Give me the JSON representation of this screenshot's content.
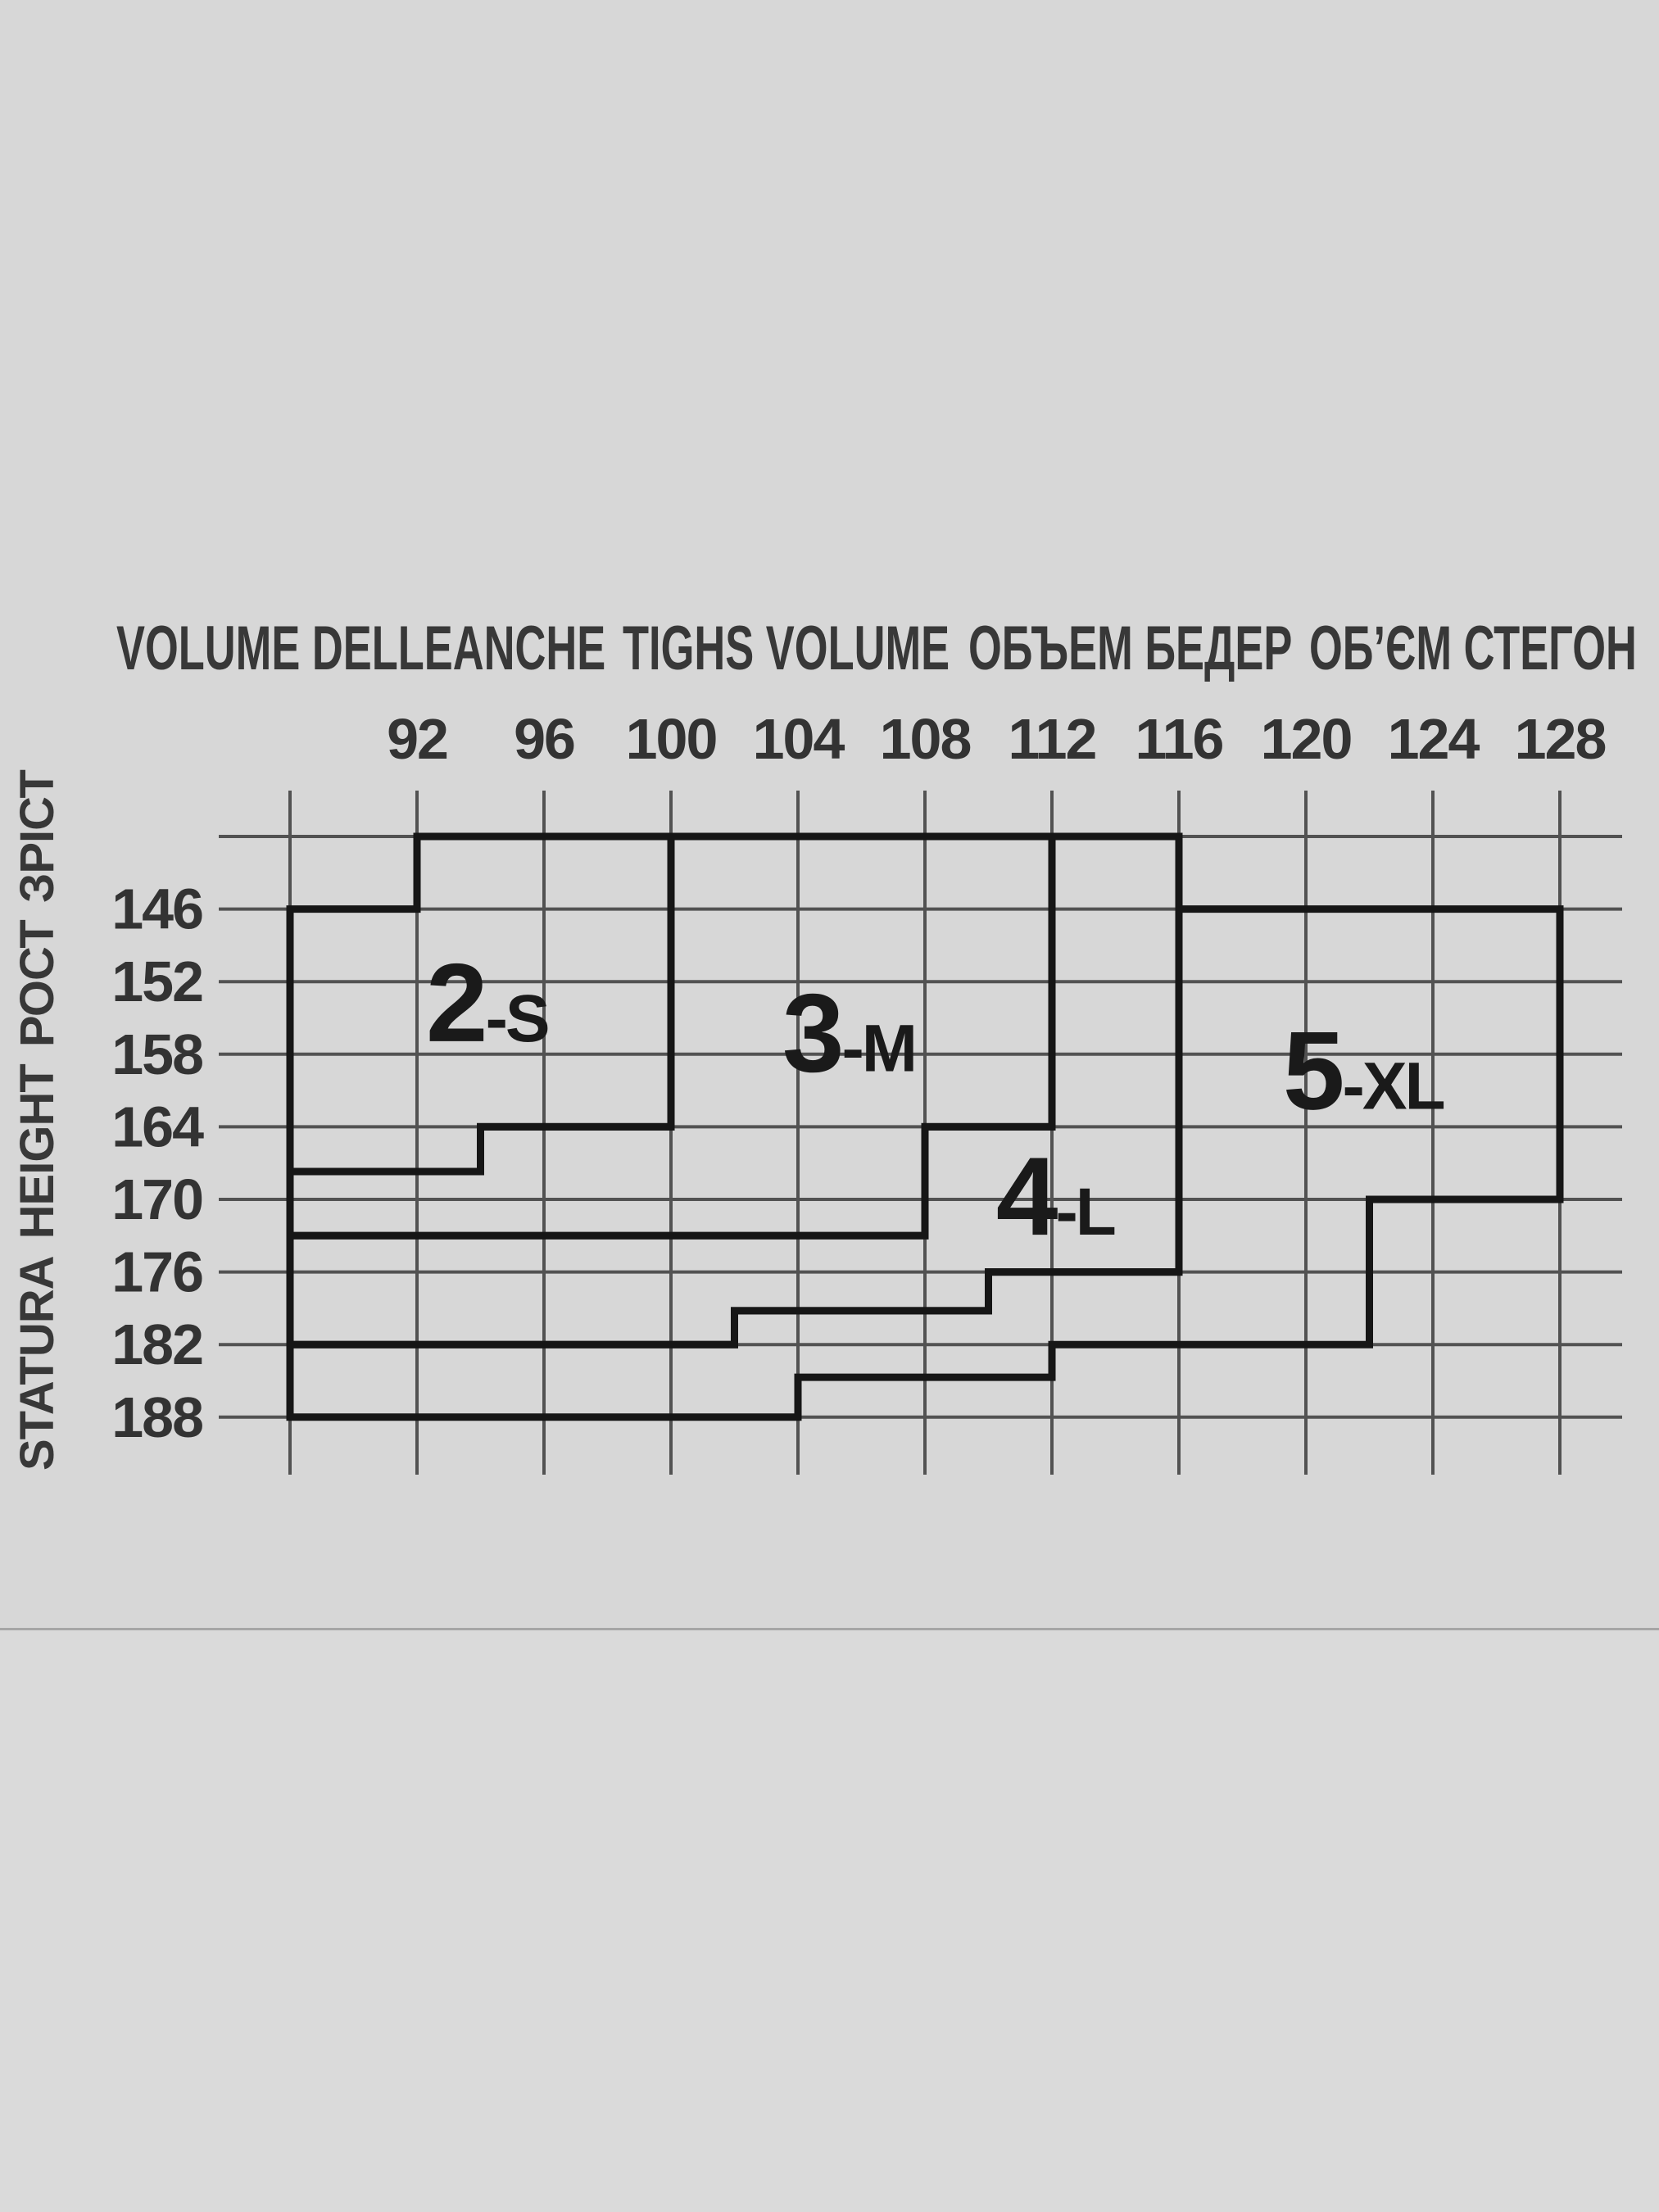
{
  "page": {
    "background": "#d7d7d7",
    "background_below_photo": "#dadada",
    "photo_bottom_edge_color": "#a6a6a6"
  },
  "chart_data": {
    "type": "area",
    "title": "Tights size selection chart: size region by hip volume and height",
    "x_axis": {
      "title_segments": [
        "VOLUME DELLEANCHE",
        "TIGHS VOLUME",
        "ОБЪЕМ БЕДЕР",
        "ОБ’ЄМ СТЕГОН"
      ],
      "tick_labels": [
        92,
        96,
        100,
        104,
        108,
        112,
        116,
        120,
        124,
        128
      ],
      "grid_values": [
        88,
        92,
        96,
        100,
        104,
        108,
        112,
        116,
        120,
        124,
        128
      ],
      "range": [
        88,
        128
      ]
    },
    "y_axis": {
      "title_segments_bottom_to_top": [
        "STATURA",
        "HEIGHT",
        "РОСТ",
        "ЗРІСТ"
      ],
      "tick_labels": [
        146,
        152,
        158,
        164,
        170,
        176,
        182,
        188
      ],
      "grid_values": [
        140,
        146,
        152,
        158,
        164,
        170,
        176,
        182,
        188
      ],
      "range": [
        140,
        188
      ]
    },
    "grid": {
      "show": true
    },
    "legend": {
      "show": false
    },
    "regions": [
      {
        "size_number": "2",
        "size_letter": "S",
        "display": "2-S",
        "x_range": [
          88,
          100
        ],
        "y_range": [
          140,
          167.7
        ],
        "polygon": [
          [
            92,
            140
          ],
          [
            100,
            140
          ],
          [
            100,
            164
          ],
          [
            94,
            164
          ],
          [
            94,
            167.7
          ],
          [
            88,
            167.7
          ],
          [
            88,
            146
          ],
          [
            92,
            146
          ]
        ],
        "label_pos": [
          94.2,
          153.6
        ]
      },
      {
        "size_number": "3",
        "size_letter": "M",
        "display": "3-M",
        "x_range": [
          88,
          112
        ],
        "y_range": [
          140,
          173
        ],
        "polygon": [
          [
            100,
            140
          ],
          [
            112,
            140
          ],
          [
            112,
            164
          ],
          [
            108,
            164
          ],
          [
            108,
            173
          ],
          [
            88,
            173
          ],
          [
            88,
            167.7
          ],
          [
            94,
            167.7
          ],
          [
            94,
            164
          ],
          [
            100,
            164
          ]
        ],
        "label_pos": [
          105.6,
          156.1
        ]
      },
      {
        "size_number": "4",
        "size_letter": "L",
        "display": "4-L",
        "x_range": [
          88,
          116
        ],
        "y_range": [
          140,
          182
        ],
        "polygon": [
          [
            112,
            140
          ],
          [
            116,
            140
          ],
          [
            116,
            176
          ],
          [
            110,
            176
          ],
          [
            110,
            179.2
          ],
          [
            102,
            179.2
          ],
          [
            102,
            182
          ],
          [
            88,
            182
          ],
          [
            88,
            173
          ],
          [
            108,
            173
          ],
          [
            108,
            164
          ],
          [
            112,
            164
          ]
        ],
        "label_pos": [
          112.1,
          169.6
        ]
      },
      {
        "size_number": "5",
        "size_letter": "XL",
        "display": "5-XL",
        "x_range": [
          88,
          128
        ],
        "y_range": [
          146,
          188
        ],
        "polygon": [
          [
            116,
            146
          ],
          [
            128,
            146
          ],
          [
            128,
            170
          ],
          [
            122,
            170
          ],
          [
            122,
            182
          ],
          [
            112,
            182
          ],
          [
            112,
            184.7
          ],
          [
            104,
            184.7
          ],
          [
            104,
            188
          ],
          [
            88,
            188
          ],
          [
            88,
            182
          ],
          [
            102,
            182
          ],
          [
            102,
            179.2
          ],
          [
            110,
            179.2
          ],
          [
            110,
            176
          ],
          [
            116,
            176
          ]
        ],
        "label_pos": [
          121.8,
          159.2
        ]
      }
    ],
    "colors": {
      "thin_grid": "#525252",
      "region_border": "#161616",
      "tick_text": "#333333",
      "region_text": "#1a1a1a"
    }
  }
}
